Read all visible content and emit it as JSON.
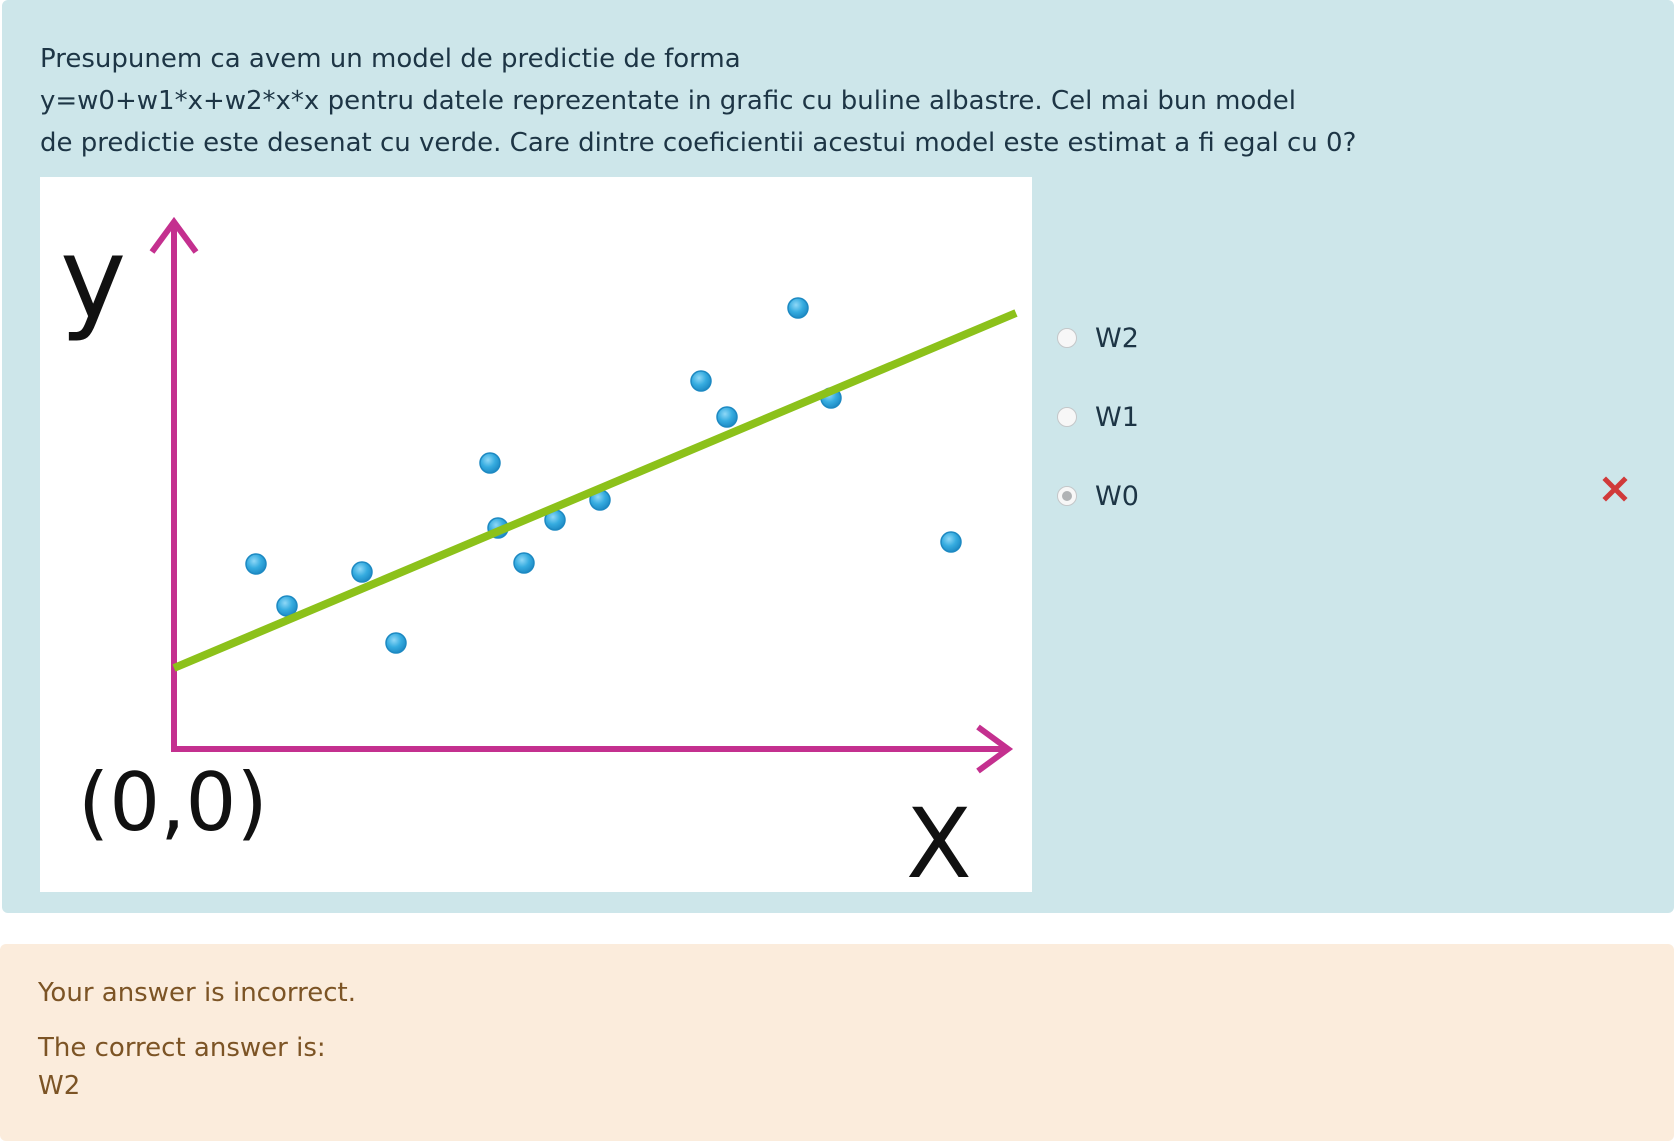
{
  "question": {
    "lines": [
      "Presupunem ca avem un model de predictie de forma",
      "y=w0+w1*x+w2*x*x pentru datele reprezentate in grafic cu buline albastre. Cel mai bun model",
      "de predictie este desenat cu verde. Care dintre coeficientii acestui model este estimat a fi egal cu 0?"
    ]
  },
  "figure": {
    "y_axis_label": "y",
    "x_axis_label": "X",
    "origin_label": "(0,0)",
    "colors": {
      "axis": "#c4308f",
      "fit_line": "#8cc11a",
      "point": "#36ace0",
      "point_outline": "#1d89c2",
      "label": "#111111"
    }
  },
  "answers": {
    "options": [
      {
        "label": "W2",
        "selected": false
      },
      {
        "label": "W1",
        "selected": false
      },
      {
        "label": "W0",
        "selected": true
      }
    ],
    "result_icon": "cross-icon",
    "result_color": "#d03a3a"
  },
  "feedback": {
    "status": "Your answer is incorrect.",
    "correct_intro": "The correct answer is:",
    "correct_value": "W2"
  }
}
